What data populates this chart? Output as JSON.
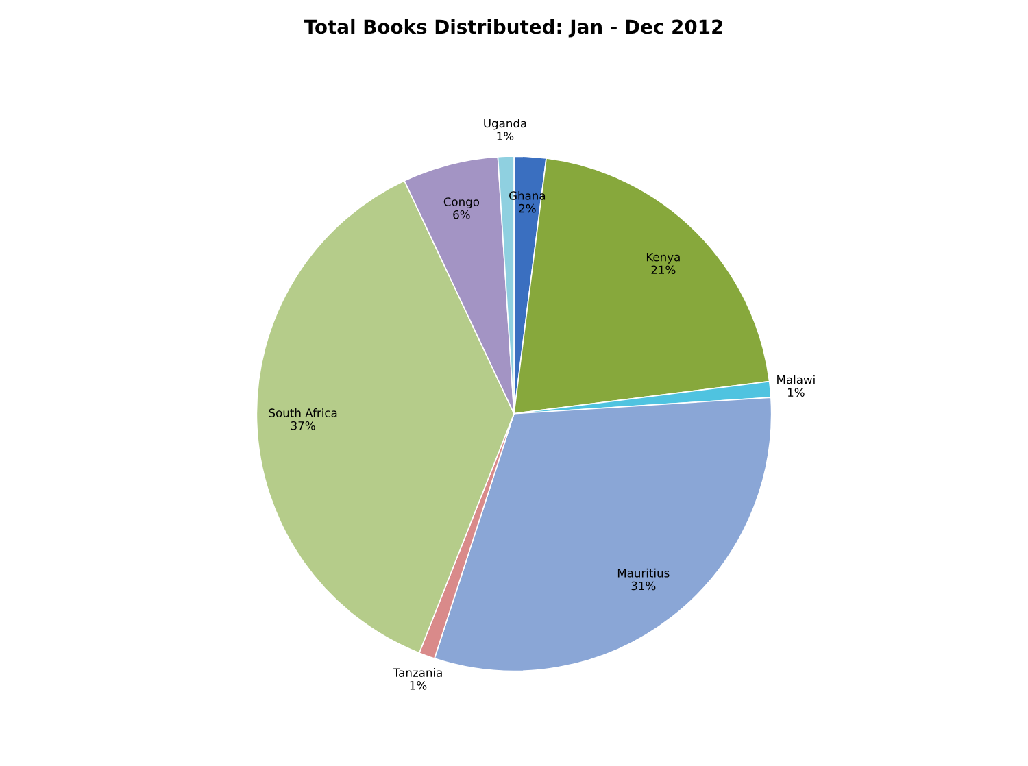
{
  "chart_data": {
    "type": "pie",
    "title": "Total Books Distributed: Jan - Dec 2012",
    "categories": [
      "Ghana",
      "Kenya",
      "Malawi",
      "Mauritius",
      "Tanzania",
      "South Africa",
      "Congo",
      "Uganda"
    ],
    "values": [
      2,
      21,
      1,
      31,
      1,
      37,
      6,
      1
    ],
    "value_labels": [
      "2%",
      "21%",
      "1%",
      "31%",
      "1%",
      "37%",
      "6%",
      "1%"
    ],
    "colors": [
      "#3a6fc0",
      "#87a83c",
      "#4fc3e0",
      "#8aa6d6",
      "#d98a8a",
      "#b5cc8a",
      "#a394c4",
      "#8fd0e0"
    ],
    "legend": false
  }
}
